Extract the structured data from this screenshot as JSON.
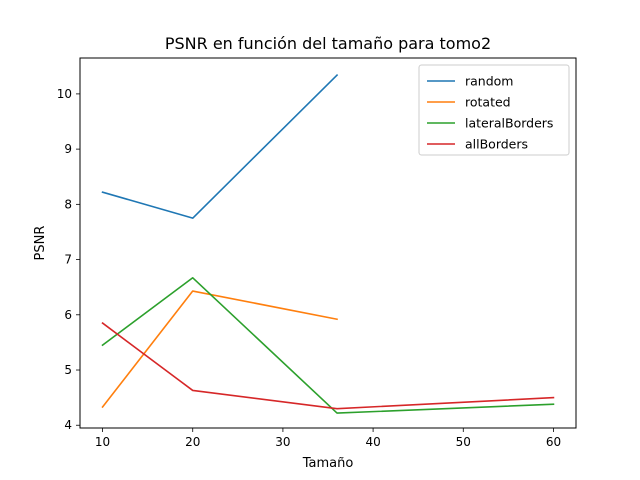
{
  "chart_data": {
    "type": "line",
    "title": "PSNR en función del tamaño para tomo2",
    "xlabel": "Tamaño",
    "ylabel": "PSNR",
    "xlim": [
      7.5,
      62.5
    ],
    "ylim": [
      3.95,
      10.65
    ],
    "xticks": [
      10,
      20,
      30,
      40,
      50,
      60
    ],
    "yticks": [
      4,
      5,
      6,
      7,
      8,
      9,
      10
    ],
    "grid": false,
    "legend_position": "top-right",
    "series": [
      {
        "name": "random",
        "color": "#1f77b4",
        "x": [
          10,
          20,
          36
        ],
        "y": [
          8.22,
          7.75,
          10.34
        ]
      },
      {
        "name": "rotated",
        "color": "#ff7f0e",
        "x": [
          10,
          20,
          36
        ],
        "y": [
          4.33,
          6.43,
          5.92
        ]
      },
      {
        "name": "lateralBorders",
        "color": "#2ca02c",
        "x": [
          10,
          20,
          36,
          60
        ],
        "y": [
          5.45,
          6.67,
          4.22,
          4.38
        ]
      },
      {
        "name": "allBorders",
        "color": "#d62728",
        "x": [
          10,
          20,
          36,
          60
        ],
        "y": [
          5.85,
          4.63,
          4.3,
          4.5
        ]
      }
    ]
  }
}
